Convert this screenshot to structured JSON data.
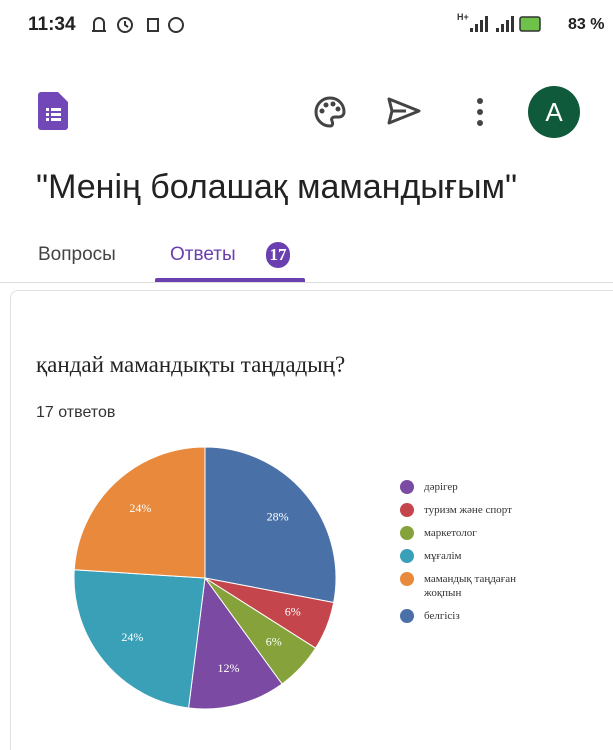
{
  "status_bar": {
    "time": "11:34",
    "network": "H+",
    "battery": "83 %"
  },
  "app_bar": {
    "avatar": "A"
  },
  "form_title": "\"Менің болашақ мамандығым\"",
  "tabs": {
    "questions": "Вопросы",
    "responses": "Ответы",
    "responses_count": "17"
  },
  "chart_data": {
    "type": "pie",
    "title": "қандай мамандықты таңдадың?",
    "subtitle": "17 ответов",
    "categories": [
      "дәрігер",
      "туризм және спорт",
      "маркетолог",
      "мұғалім",
      "мамандық таңдаған жоқпын",
      "белгісіз"
    ],
    "values": [
      12,
      6,
      6,
      24,
      24,
      28
    ],
    "value_labels": [
      "12%",
      "6%",
      "6%",
      "24%",
      "24%",
      "28%"
    ],
    "colors": [
      "#7b4aa3",
      "#c4464c",
      "#86a23a",
      "#3aa0b8",
      "#e8893c",
      "#4a70a8"
    ]
  }
}
